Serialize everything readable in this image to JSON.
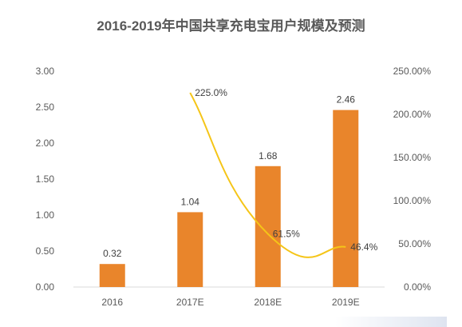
{
  "chart_data": {
    "type": "bar",
    "title": "2016-2019年中国共享充电宝用户规模及预测",
    "categories": [
      "2016",
      "2017E",
      "2018E",
      "2019E"
    ],
    "series": [
      {
        "values": [
          0.32,
          1.04,
          1.68,
          2.46
        ],
        "labels": [
          "0.32",
          "1.04",
          "1.68",
          "2.46"
        ],
        "color": "#E9852B",
        "axis": "left",
        "kind": "bar"
      },
      {
        "values": [
          null,
          225.0,
          61.5,
          46.4
        ],
        "labels": [
          null,
          "225.0%",
          "61.5%",
          "46.4%"
        ],
        "color": "#F5C518",
        "axis": "right",
        "kind": "line"
      }
    ],
    "y_left": {
      "min": 0,
      "max": 3,
      "ticks": [
        "0.00",
        "0.50",
        "1.00",
        "1.50",
        "2.00",
        "2.50",
        "3.00"
      ]
    },
    "y_right": {
      "min": 0,
      "max": 250,
      "ticks": [
        "0.00%",
        "50.00%",
        "100.00%",
        "150.00%",
        "200.00%",
        "250.00%"
      ]
    },
    "grid": false,
    "legend": "none"
  }
}
